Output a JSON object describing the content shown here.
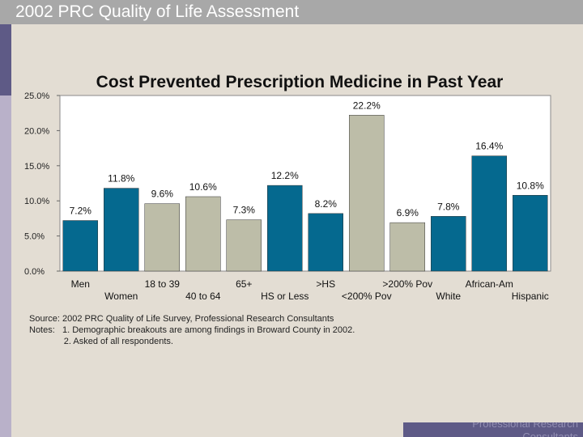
{
  "header": {
    "title": "2002 PRC Quality of Life Assessment"
  },
  "footer": {
    "brand": "Professional Research Consultants"
  },
  "notes": {
    "source": "Source: 2002 PRC Quality of Life Survey, Professional Research Consultants",
    "note1": "Notes:   1. Demographic breakouts are among findings in Broward County in 2002.",
    "note2": "              2. Asked of all respondents."
  },
  "colors": {
    "teal": "#05698f",
    "gray": "#bdbda8"
  },
  "chart_data": {
    "type": "bar",
    "title": "Cost Prevented Prescription Medicine in Past Year",
    "ylim": [
      0,
      25
    ],
    "yticks": [
      "0.0%",
      "5.0%",
      "10.0%",
      "15.0%",
      "20.0%",
      "25.0%"
    ],
    "grid": false,
    "categories": [
      "Men",
      "Women",
      "18 to 39",
      "40 to 64",
      "65+",
      "HS or Less",
      ">HS",
      "<200% Pov",
      ">200% Pov",
      "White",
      "African-Am",
      "Hispanic"
    ],
    "values": [
      7.2,
      11.8,
      9.6,
      10.6,
      7.3,
      12.2,
      8.2,
      22.2,
      6.9,
      7.8,
      16.4,
      10.8
    ],
    "labels": [
      "7.2%",
      "11.8%",
      "9.6%",
      "10.6%",
      "7.3%",
      "12.2%",
      "8.2%",
      "22.2%",
      "6.9%",
      "7.8%",
      "16.4%",
      "10.8%"
    ],
    "bar_colors": [
      "teal",
      "teal",
      "gray",
      "gray",
      "gray",
      "teal",
      "teal",
      "gray",
      "gray",
      "teal",
      "teal",
      "teal"
    ]
  }
}
